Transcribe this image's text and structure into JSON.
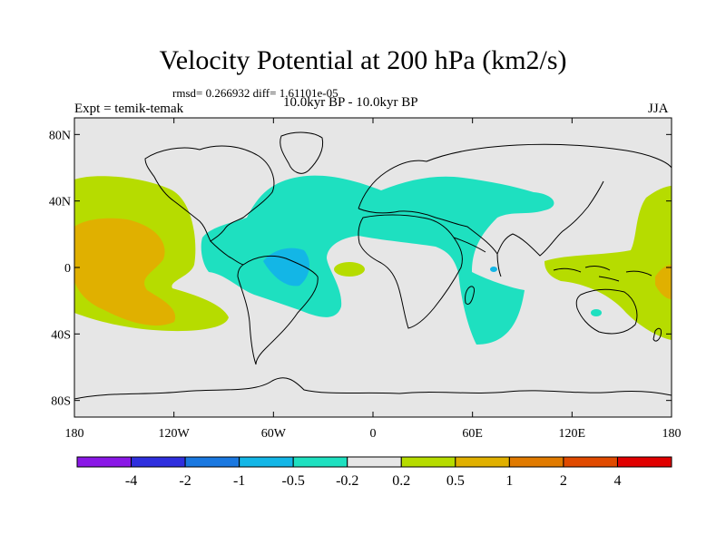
{
  "title": "Velocity Potential at 200 hPa (km2/s)",
  "rmsd_line": "rmsd= 0.266932 diff= 1.61101e-05",
  "experiment": "Expt = temik-temak",
  "period": "10.0kyr BP - 10.0kyr BP",
  "season": "JJA",
  "lat_ticks": [
    {
      "value": 80,
      "label": "80N"
    },
    {
      "value": 40,
      "label": "40N"
    },
    {
      "value": 0,
      "label": "0"
    },
    {
      "value": -40,
      "label": "40S"
    },
    {
      "value": -80,
      "label": "80S"
    }
  ],
  "lon_ticks": [
    {
      "value": -180,
      "label": "180"
    },
    {
      "value": -120,
      "label": "120W"
    },
    {
      "value": -60,
      "label": "60W"
    },
    {
      "value": 0,
      "label": "0"
    },
    {
      "value": 60,
      "label": "60E"
    },
    {
      "value": 120,
      "label": "120E"
    },
    {
      "value": 180,
      "label": "180"
    }
  ],
  "colorbar": {
    "colors": [
      "#8a17e6",
      "#2f2fde",
      "#1a78e0",
      "#13b6e6",
      "#1ee0c0",
      "#e6e6e6",
      "#b6dc00",
      "#e0b000",
      "#e07a00",
      "#e04a00",
      "#e00000"
    ],
    "labels": [
      "-4",
      "-2",
      "-1",
      "-0.5",
      "-0.2",
      "0.2",
      "0.5",
      "1",
      "2",
      "4"
    ]
  },
  "colors": {
    "background": "#e6e6e6",
    "neg_weak": "#1ee0c0",
    "neg_mid": "#13b6e6",
    "neg_strong": "#1a78e0",
    "pos_weak": "#b6dc00",
    "pos_mid": "#e0b000"
  }
}
